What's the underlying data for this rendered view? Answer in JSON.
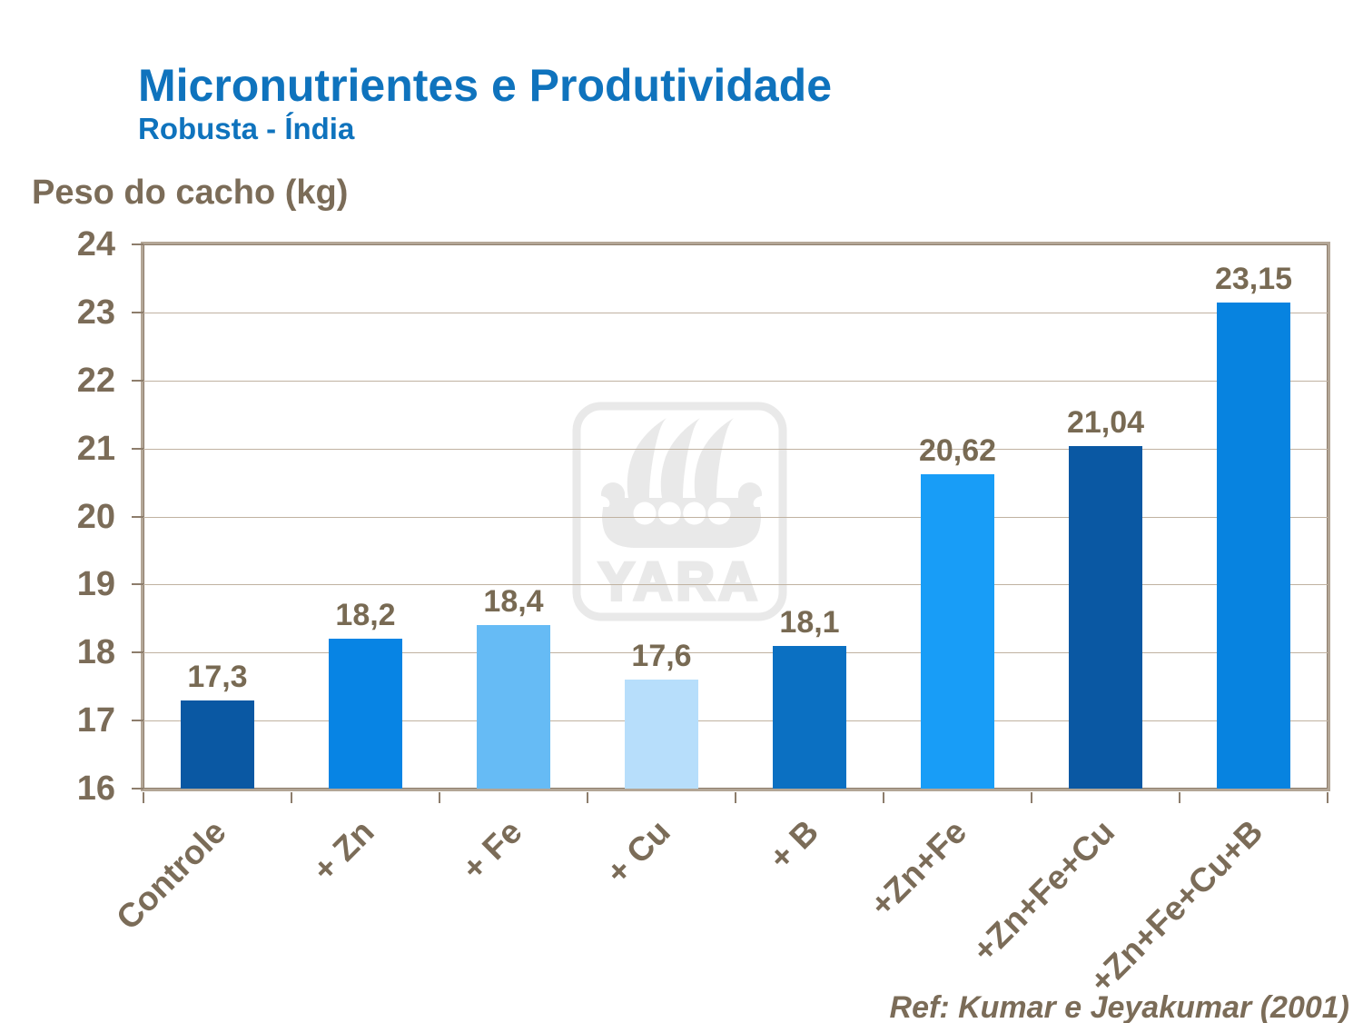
{
  "slide": {
    "title": "Micronutrientes e Produtividade",
    "subtitle": "Robusta - Índia",
    "reference": "Ref: Kumar e Jeyakumar (2001)",
    "watermark_text": "YARA"
  },
  "colors": {
    "title_blue": "#0f73bd",
    "label_brown": "#7b6c58",
    "value_label_brown": "#786a53",
    "plot_border_light": "#b3a696",
    "plot_border_dark": "#8d7d6c",
    "gridline": "#c0b2a1",
    "tick": "#8d7d6c",
    "watermark_gray": "#e9e9e9",
    "background": "#ffffff"
  },
  "chart_data": {
    "type": "bar",
    "title": "Micronutrientes e Produtividade",
    "subtitle": "Robusta - Índia",
    "xlabel": "",
    "ylabel": "Peso do cacho (kg)",
    "ylim": [
      16,
      24
    ],
    "ytick_interval": 1,
    "yticks": [
      "16",
      "17",
      "18",
      "19",
      "20",
      "21",
      "22",
      "23",
      "24"
    ],
    "grid": "horizontal",
    "legend": "none",
    "categories": [
      "Controle",
      "+ Zn",
      "+ Fe",
      "+ Cu",
      "+ B",
      "+Zn+Fe",
      "+Zn+Fe+Cu",
      "+Zn+Fe+Cu+B"
    ],
    "values": [
      17.3,
      18.2,
      18.4,
      17.6,
      18.1,
      20.62,
      21.04,
      23.15
    ],
    "value_labels": [
      "17,3",
      "18,2",
      "18,4",
      "17,6",
      "18,1",
      "20,62",
      "21,04",
      "23,15"
    ],
    "bar_colors": [
      "#0a58a3",
      "#0784e4",
      "#66bbf5",
      "#b7defb",
      "#0b70c2",
      "#189df7",
      "#0a58a3",
      "#0783e0"
    ],
    "annotation": "Ref: Kumar e Jeyakumar (2001)"
  }
}
